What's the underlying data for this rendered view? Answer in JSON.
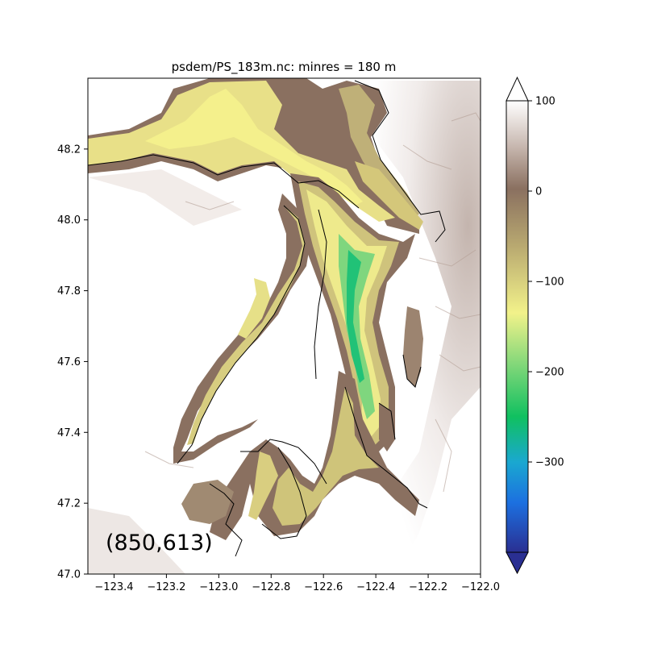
{
  "figure": {
    "title": "psdem/PS_183m.nc: minres = 180 m",
    "annotation": "(850,613)"
  },
  "chart_data": {
    "type": "heatmap",
    "title": "psdem/PS_183m.nc: minres = 180 m",
    "xlim": [
      -123.5,
      -122.0
    ],
    "ylim": [
      47.0,
      48.4
    ],
    "x_ticks": [
      -123.4,
      -123.2,
      -123.0,
      -122.8,
      -122.6,
      -122.4,
      -122.2,
      -122.0
    ],
    "x_tick_labels": [
      "−123.4",
      "−123.2",
      "−123.0",
      "−122.8",
      "−122.6",
      "−122.4",
      "−122.2",
      "−122.0"
    ],
    "y_ticks": [
      47.0,
      47.2,
      47.4,
      47.6,
      47.8,
      48.0,
      48.2
    ],
    "y_tick_labels": [
      "47.0",
      "47.2",
      "47.4",
      "47.6",
      "47.8",
      "48.0",
      "48.2"
    ],
    "colorbar": {
      "range": [
        -400,
        100
      ],
      "ticks": [
        100,
        0,
        -100,
        -200,
        -300
      ],
      "tick_labels": [
        "100",
        "0",
        "−100",
        "−200",
        "−300"
      ],
      "extend": "both",
      "colors": {
        "v100": "#ffffff",
        "v50": "#c8b8b0",
        "v0": "#8a7060",
        "vm60": "#b8a870",
        "vm140": "#f2f28a",
        "vm200": "#86d87a",
        "vm250": "#10c060",
        "vm300": "#1aa8d0",
        "vm350": "#1c70e0",
        "vm400": "#2a2f92"
      }
    },
    "colors": {
      "land_high": "#ffffff",
      "land_low": "#c9b7b1",
      "shore": "#7e6353",
      "shallow": "#c9b877",
      "mid": "#eeea8c",
      "deep": "#7fd67e",
      "deepest": "#21c277",
      "coastline": "#000000"
    }
  }
}
